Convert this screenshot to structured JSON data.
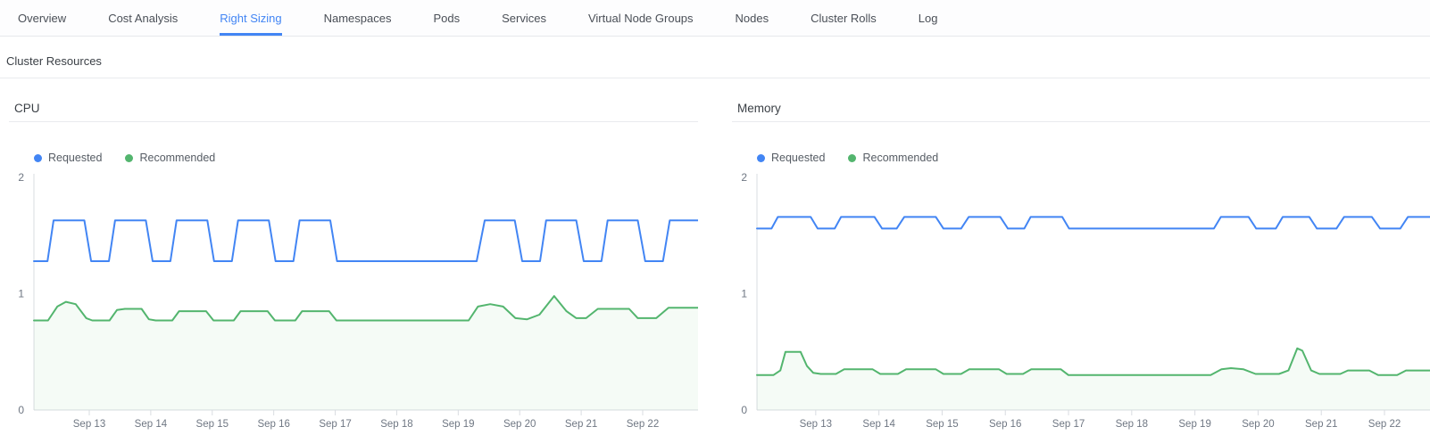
{
  "tab_bar": {
    "tabs": [
      "Overview",
      "Cost Analysis",
      "Right Sizing",
      "Namespaces",
      "Pods",
      "Services",
      "Virtual Node Groups",
      "Nodes",
      "Cluster Rolls",
      "Log"
    ],
    "active_tab": "Right Sizing"
  },
  "section": {
    "title": "Cluster Resources"
  },
  "colors": {
    "accent_blue": "#4285f4",
    "series_requested": "#4285f4",
    "series_recommended": "#53b56e",
    "recommended_area_fill": "#53b56e",
    "axis_line": "#d9dce1",
    "tick_text": "#6f7783"
  },
  "chart_data": [
    {
      "type": "line",
      "title": "CPU",
      "xlabel": "",
      "ylabel": "",
      "grid": false,
      "legend_position": "top-left",
      "ylim": [
        0,
        2
      ],
      "yticks": [
        0,
        1,
        2
      ],
      "x_unit": "September day-of-month",
      "xlim": [
        12.1,
        22.9
      ],
      "xticks": [
        {
          "x": 13,
          "label": "Sep 13"
        },
        {
          "x": 14,
          "label": "Sep 14"
        },
        {
          "x": 15,
          "label": "Sep 15"
        },
        {
          "x": 16,
          "label": "Sep 16"
        },
        {
          "x": 17,
          "label": "Sep 17"
        },
        {
          "x": 18,
          "label": "Sep 18"
        },
        {
          "x": 19,
          "label": "Sep 19"
        },
        {
          "x": 20,
          "label": "Sep 20"
        },
        {
          "x": 21,
          "label": "Sep 21"
        },
        {
          "x": 22,
          "label": "Sep 22"
        }
      ],
      "series": [
        {
          "name": "Requested",
          "color": "#4285f4",
          "area_fill": false,
          "points": [
            [
              12.1,
              1.28
            ],
            [
              12.32,
              1.28
            ],
            [
              12.42,
              1.63
            ],
            [
              12.92,
              1.63
            ],
            [
              13.03,
              1.28
            ],
            [
              13.32,
              1.28
            ],
            [
              13.42,
              1.63
            ],
            [
              13.92,
              1.63
            ],
            [
              14.03,
              1.28
            ],
            [
              14.32,
              1.28
            ],
            [
              14.42,
              1.63
            ],
            [
              14.92,
              1.63
            ],
            [
              15.03,
              1.28
            ],
            [
              15.32,
              1.28
            ],
            [
              15.42,
              1.63
            ],
            [
              15.92,
              1.63
            ],
            [
              16.03,
              1.28
            ],
            [
              16.32,
              1.28
            ],
            [
              16.42,
              1.63
            ],
            [
              16.92,
              1.63
            ],
            [
              17.03,
              1.28
            ],
            [
              19.3,
              1.28
            ],
            [
              19.43,
              1.63
            ],
            [
              19.92,
              1.63
            ],
            [
              20.04,
              1.28
            ],
            [
              20.33,
              1.28
            ],
            [
              20.43,
              1.63
            ],
            [
              20.92,
              1.63
            ],
            [
              21.04,
              1.28
            ],
            [
              21.33,
              1.28
            ],
            [
              21.43,
              1.63
            ],
            [
              21.92,
              1.63
            ],
            [
              22.04,
              1.28
            ],
            [
              22.33,
              1.28
            ],
            [
              22.44,
              1.63
            ],
            [
              22.9,
              1.63
            ]
          ]
        },
        {
          "name": "Recommended",
          "color": "#53b56e",
          "area_fill": true,
          "points": [
            [
              12.1,
              0.77
            ],
            [
              12.33,
              0.77
            ],
            [
              12.48,
              0.89
            ],
            [
              12.62,
              0.93
            ],
            [
              12.78,
              0.91
            ],
            [
              12.95,
              0.79
            ],
            [
              13.05,
              0.77
            ],
            [
              13.33,
              0.77
            ],
            [
              13.45,
              0.86
            ],
            [
              13.58,
              0.87
            ],
            [
              13.85,
              0.87
            ],
            [
              13.97,
              0.78
            ],
            [
              14.08,
              0.77
            ],
            [
              14.35,
              0.77
            ],
            [
              14.46,
              0.85
            ],
            [
              14.9,
              0.85
            ],
            [
              15.02,
              0.77
            ],
            [
              15.35,
              0.77
            ],
            [
              15.46,
              0.85
            ],
            [
              15.9,
              0.85
            ],
            [
              16.02,
              0.77
            ],
            [
              16.35,
              0.77
            ],
            [
              16.46,
              0.85
            ],
            [
              16.9,
              0.85
            ],
            [
              17.02,
              0.77
            ],
            [
              19.17,
              0.77
            ],
            [
              19.32,
              0.89
            ],
            [
              19.52,
              0.91
            ],
            [
              19.73,
              0.89
            ],
            [
              19.93,
              0.79
            ],
            [
              20.12,
              0.78
            ],
            [
              20.32,
              0.82
            ],
            [
              20.56,
              0.98
            ],
            [
              20.76,
              0.85
            ],
            [
              20.92,
              0.79
            ],
            [
              21.08,
              0.79
            ],
            [
              21.27,
              0.87
            ],
            [
              21.78,
              0.87
            ],
            [
              21.92,
              0.79
            ],
            [
              22.22,
              0.79
            ],
            [
              22.42,
              0.88
            ],
            [
              22.9,
              0.88
            ]
          ]
        }
      ]
    },
    {
      "type": "line",
      "title": "Memory",
      "xlabel": "",
      "ylabel": "",
      "grid": false,
      "legend_position": "top-left",
      "ylim": [
        0,
        2
      ],
      "yticks": [
        0,
        1,
        2
      ],
      "x_unit": "September day-of-month",
      "xlim": [
        12.07,
        22.72
      ],
      "xticks": [
        {
          "x": 13,
          "label": "Sep 13"
        },
        {
          "x": 14,
          "label": "Sep 14"
        },
        {
          "x": 15,
          "label": "Sep 15"
        },
        {
          "x": 16,
          "label": "Sep 16"
        },
        {
          "x": 17,
          "label": "Sep 17"
        },
        {
          "x": 18,
          "label": "Sep 18"
        },
        {
          "x": 19,
          "label": "Sep 19"
        },
        {
          "x": 20,
          "label": "Sep 20"
        },
        {
          "x": 21,
          "label": "Sep 21"
        },
        {
          "x": 22,
          "label": "Sep 22"
        }
      ],
      "series": [
        {
          "name": "Requested",
          "color": "#4285f4",
          "area_fill": false,
          "points": [
            [
              12.07,
              1.56
            ],
            [
              12.3,
              1.56
            ],
            [
              12.4,
              1.66
            ],
            [
              12.92,
              1.66
            ],
            [
              13.03,
              1.56
            ],
            [
              13.3,
              1.56
            ],
            [
              13.4,
              1.66
            ],
            [
              13.93,
              1.66
            ],
            [
              14.05,
              1.56
            ],
            [
              14.28,
              1.56
            ],
            [
              14.4,
              1.66
            ],
            [
              14.9,
              1.66
            ],
            [
              15.02,
              1.56
            ],
            [
              15.3,
              1.56
            ],
            [
              15.42,
              1.66
            ],
            [
              15.92,
              1.66
            ],
            [
              16.04,
              1.56
            ],
            [
              16.3,
              1.56
            ],
            [
              16.4,
              1.66
            ],
            [
              16.9,
              1.66
            ],
            [
              17.01,
              1.56
            ],
            [
              19.3,
              1.56
            ],
            [
              19.41,
              1.66
            ],
            [
              19.85,
              1.66
            ],
            [
              19.97,
              1.56
            ],
            [
              20.28,
              1.56
            ],
            [
              20.39,
              1.66
            ],
            [
              20.81,
              1.66
            ],
            [
              20.93,
              1.56
            ],
            [
              21.24,
              1.56
            ],
            [
              21.36,
              1.66
            ],
            [
              21.8,
              1.66
            ],
            [
              21.93,
              1.56
            ],
            [
              22.25,
              1.56
            ],
            [
              22.37,
              1.66
            ],
            [
              22.72,
              1.66
            ]
          ]
        },
        {
          "name": "Recommended",
          "color": "#53b56e",
          "area_fill": true,
          "points": [
            [
              12.07,
              0.3
            ],
            [
              12.33,
              0.3
            ],
            [
              12.44,
              0.34
            ],
            [
              12.52,
              0.5
            ],
            [
              12.76,
              0.5
            ],
            [
              12.86,
              0.38
            ],
            [
              12.96,
              0.32
            ],
            [
              13.08,
              0.31
            ],
            [
              13.32,
              0.31
            ],
            [
              13.45,
              0.35
            ],
            [
              13.9,
              0.35
            ],
            [
              14.02,
              0.31
            ],
            [
              14.3,
              0.31
            ],
            [
              14.43,
              0.35
            ],
            [
              14.9,
              0.35
            ],
            [
              15.02,
              0.31
            ],
            [
              15.3,
              0.31
            ],
            [
              15.43,
              0.35
            ],
            [
              15.9,
              0.35
            ],
            [
              16.02,
              0.31
            ],
            [
              16.28,
              0.31
            ],
            [
              16.41,
              0.35
            ],
            [
              16.88,
              0.35
            ],
            [
              17.0,
              0.3
            ],
            [
              19.25,
              0.3
            ],
            [
              19.42,
              0.35
            ],
            [
              19.57,
              0.36
            ],
            [
              19.77,
              0.35
            ],
            [
              19.96,
              0.31
            ],
            [
              20.33,
              0.31
            ],
            [
              20.48,
              0.34
            ],
            [
              20.62,
              0.53
            ],
            [
              20.7,
              0.51
            ],
            [
              20.84,
              0.34
            ],
            [
              20.97,
              0.31
            ],
            [
              21.3,
              0.31
            ],
            [
              21.42,
              0.34
            ],
            [
              21.76,
              0.34
            ],
            [
              21.9,
              0.3
            ],
            [
              22.2,
              0.3
            ],
            [
              22.34,
              0.34
            ],
            [
              22.72,
              0.34
            ]
          ]
        }
      ]
    }
  ]
}
